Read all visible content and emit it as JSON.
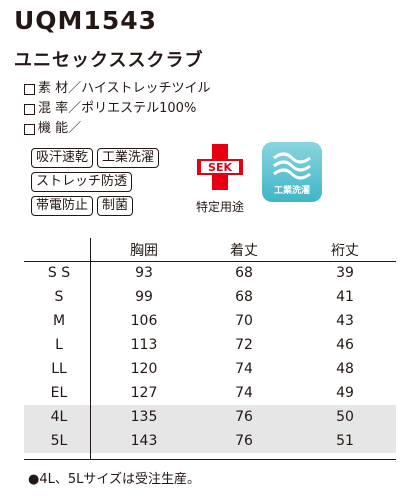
{
  "product": {
    "code": "UQM1543",
    "name": "ユニセックススクラブ"
  },
  "specs": [
    {
      "label": "素 材／",
      "value": "ハイストレッチツイル"
    },
    {
      "label": "混 率／",
      "value": "ポリエステル100%"
    },
    {
      "label": "機 能／",
      "value": ""
    }
  ],
  "features": [
    [
      "吸汗速乾",
      "工業洗濯"
    ],
    [
      "ストレッチ防透"
    ],
    [
      "帯電防止",
      "制菌"
    ]
  ],
  "certification": {
    "mark": "SEK",
    "caption": "特定用途",
    "mark_color": "#e60012"
  },
  "wash_badge": {
    "label": "工業洗濯",
    "color": "#3fb6c8"
  },
  "size_table": {
    "headers": [
      "",
      "胸囲",
      "着丈",
      "裄丈"
    ],
    "rows": [
      [
        "S S",
        "93",
        "68",
        "39"
      ],
      [
        "S",
        "99",
        "68",
        "41"
      ],
      [
        "M",
        "106",
        "70",
        "43"
      ],
      [
        "L",
        "113",
        "72",
        "46"
      ],
      [
        "LL",
        "120",
        "74",
        "48"
      ],
      [
        "EL",
        "127",
        "74",
        "49"
      ],
      [
        "4L",
        "135",
        "76",
        "50"
      ],
      [
        "5L",
        "143",
        "76",
        "51"
      ]
    ],
    "shaded_rows": [
      "4L",
      "5L"
    ]
  },
  "note": "●4L、5Lサイズは受注生産。"
}
